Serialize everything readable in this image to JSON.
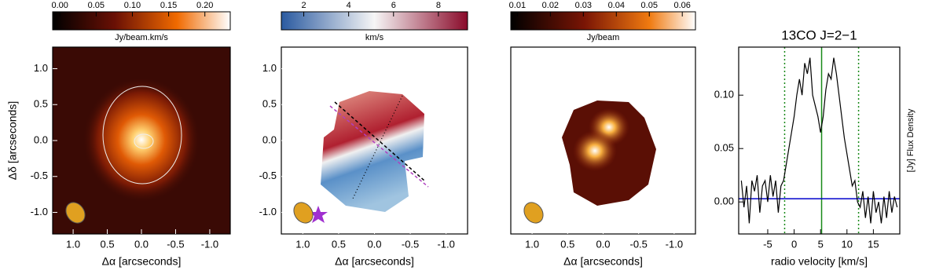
{
  "chart_data": [
    {
      "type": "image",
      "colorbar": {
        "label": "Jy/beam.km/s",
        "lim": [
          -0.01,
          0.235
        ],
        "ticks": [
          {
            "value": 0,
            "label": "0.00"
          },
          0.05,
          {
            "value": 0.1,
            "label": "0.10"
          },
          0.15,
          {
            "value": 0.2,
            "label": "0.20"
          }
        ]
      },
      "xlabel": "Δα  [arcseconds]",
      "ylabel": "Δδ  [arcseconds]",
      "xlim": [
        1.3,
        -1.3
      ],
      "ylim": [
        -1.3,
        1.3
      ],
      "xticks": [
        {
          "value": 1,
          "label": "1.0"
        },
        0.5,
        {
          "value": 0,
          "label": "0.0"
        },
        -0.5,
        {
          "value": -1,
          "label": "-1.0"
        }
      ],
      "yticks": [
        {
          "value": -1,
          "label": "-1.0"
        },
        -0.5,
        {
          "value": 0,
          "label": "0.0"
        },
        0.5,
        {
          "value": 1,
          "label": "1.0"
        }
      ]
    },
    {
      "type": "image",
      "colorbar": {
        "label": "km/s",
        "lim": [
          1,
          9.3
        ],
        "ticks": [
          2,
          4,
          6,
          8
        ]
      },
      "xlabel": "Δα  [arcseconds]",
      "xlim": [
        1.3,
        -1.3
      ],
      "ylim": [
        -1.3,
        1.3
      ],
      "xticks": [
        {
          "value": 1,
          "label": "1.0"
        },
        0.5,
        {
          "value": 0,
          "label": "0.0"
        },
        -0.5,
        {
          "value": -1,
          "label": "-1.0"
        }
      ],
      "yticks": [
        {
          "value": -1,
          "label": "-1.0"
        },
        -0.5,
        {
          "value": 0,
          "label": "0.0"
        },
        0.5,
        {
          "value": 1,
          "label": "1.0"
        }
      ]
    },
    {
      "type": "image",
      "colorbar": {
        "label": "Jy/beam",
        "lim": [
          0.008,
          0.064
        ],
        "ticks": [
          0.01,
          0.02,
          0.03,
          0.04,
          0.05,
          0.06
        ]
      },
      "xlabel": "Δα  [arcseconds]",
      "xlim": [
        1.3,
        -1.3
      ],
      "ylim": [
        -1.3,
        1.3
      ],
      "xticks": [
        {
          "value": 1,
          "label": "1.0"
        },
        0.5,
        {
          "value": 0,
          "label": "0.0"
        },
        -0.5,
        {
          "value": -1,
          "label": "-1.0"
        }
      ]
    },
    {
      "type": "line",
      "title": "13CO J=2−1",
      "xlabel": "radio velocity [km/s]",
      "ylabel": "[Jy] Flux Density",
      "color": "#000000",
      "x": [
        -10,
        -9.5,
        -9,
        -8.5,
        -8,
        -7.5,
        -7,
        -6.5,
        -6,
        -5.5,
        -5,
        -4.5,
        -4,
        -3.5,
        -3,
        -2.5,
        -2,
        -1.5,
        -1,
        -0.5,
        0,
        0.5,
        1,
        1.5,
        2,
        2.5,
        3,
        3.5,
        4,
        4.5,
        5,
        5.5,
        6,
        6.5,
        7,
        7.5,
        8,
        8.5,
        9,
        9.5,
        10,
        10.5,
        11,
        11.5,
        12,
        12.5,
        13,
        13.5,
        14,
        14.5,
        15,
        15.5,
        16,
        16.5,
        17,
        17.5,
        18,
        18.5,
        19,
        19.5
      ],
      "values": [
        0.02,
        -0.005,
        0.015,
        -0.02,
        0.02,
        0.01,
        0.025,
        -0.01,
        0.015,
        0.02,
        0,
        0.025,
        0.005,
        0.02,
        -0.01,
        0.015,
        0.02,
        0.035,
        0.05,
        0.065,
        0.08,
        0.1,
        0.115,
        0.1,
        0.13,
        0.12,
        0.135,
        0.1,
        0.09,
        0.08,
        0.065,
        0.08,
        0.105,
        0.12,
        0.115,
        0.135,
        0.12,
        0.1,
        0.08,
        0.06,
        0.045,
        0.03,
        0.015,
        0.02,
        0,
        -0.005,
        0.01,
        -0.015,
        0.005,
        -0.02,
        0.01,
        -0.01,
        0,
        -0.02,
        0.005,
        -0.015,
        0.01,
        -0.01,
        0.005,
        -0.005
      ],
      "xlim": [
        -10.5,
        20
      ],
      "ylim": [
        -0.03,
        0.145
      ],
      "xticks": [
        -5,
        0,
        5,
        10,
        15
      ],
      "yticks": [
        {
          "value": 0,
          "label": "0.00"
        },
        0.05,
        {
          "value": 0.1,
          "label": "0.10"
        }
      ],
      "vlines": [
        {
          "value": -1.8,
          "style": "dotted"
        },
        {
          "value": 5.2,
          "style": "solid"
        },
        {
          "value": 12.2,
          "style": "dotted"
        }
      ],
      "vline_color": "#1a8a1a",
      "hline": 0.003,
      "hline_color": "#0000cc"
    }
  ]
}
